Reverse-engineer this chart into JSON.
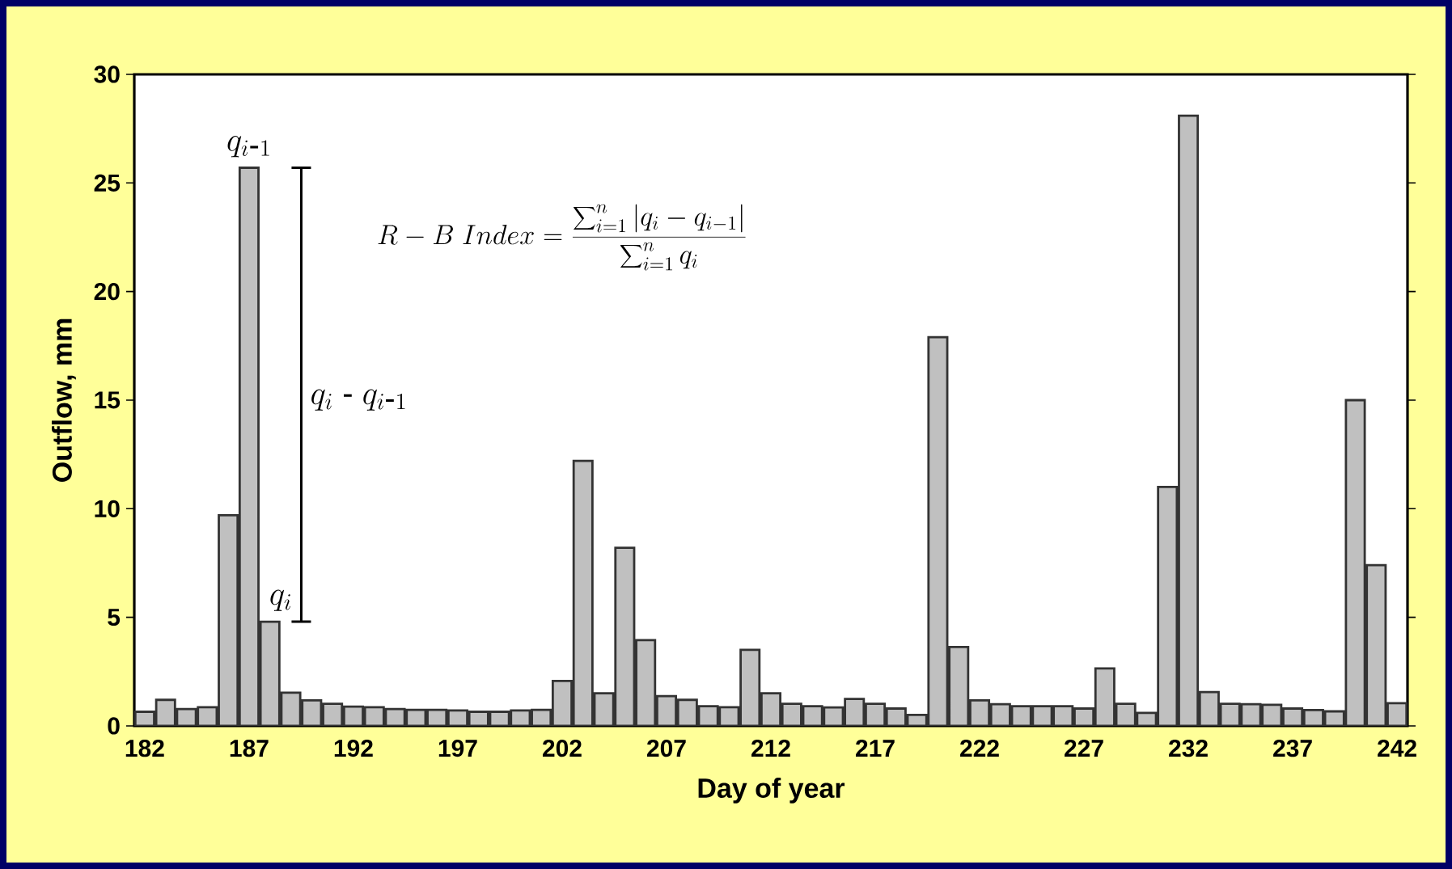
{
  "chart_data": {
    "type": "bar",
    "xlabel": "Day of year",
    "ylabel": "Outflow, mm",
    "categories": [
      "182",
      null,
      null,
      null,
      null,
      "187",
      null,
      null,
      null,
      null,
      "192",
      null,
      null,
      null,
      null,
      "197",
      null,
      null,
      null,
      null,
      "202",
      null,
      null,
      null,
      null,
      "207",
      null,
      null,
      null,
      null,
      "212",
      null,
      null,
      null,
      null,
      "217",
      null,
      null,
      null,
      null,
      "222",
      null,
      null,
      null,
      null,
      "227",
      null,
      null,
      null,
      null,
      "232",
      null,
      null,
      null,
      null,
      "237",
      null,
      null,
      null,
      null,
      "242"
    ],
    "values": [
      0.65,
      1.2,
      0.78,
      0.86,
      9.7,
      25.7,
      4.8,
      1.53,
      1.18,
      1.02,
      0.89,
      0.86,
      0.78,
      0.74,
      0.74,
      0.71,
      0.65,
      0.65,
      0.71,
      0.74,
      2.07,
      12.2,
      1.5,
      8.2,
      3.95,
      1.37,
      1.2,
      0.91,
      0.86,
      3.5,
      1.5,
      1.02,
      0.91,
      0.85,
      1.24,
      1.02,
      0.8,
      0.51,
      17.9,
      3.63,
      1.18,
      1.0,
      0.91,
      0.91,
      0.91,
      0.8,
      2.65,
      1.02,
      0.6,
      11.0,
      28.1,
      1.56,
      1.02,
      1.0,
      0.97,
      0.8,
      0.73,
      0.67,
      15.0,
      7.4,
      1.05
    ],
    "color": "#c0c0c0",
    "ylim": [
      0,
      30
    ],
    "yticks": [
      0,
      5,
      10,
      15,
      20,
      25,
      30
    ],
    "grid": false,
    "annotations": [
      "q_{i\\mbox{-}1}",
      "q_i",
      "q_i\\ \\mbox{-}\\ q_{i\\mbox{-}1}",
      "R - B\\ Index = \\frac{\\displaystyle\\sum\\nolimits_{i=1}^{n}\\left|q_i - q_{i-1}\\right|}{\\displaystyle\\sum\\nolimits_{i=1}^{n} q_i}"
    ]
  }
}
